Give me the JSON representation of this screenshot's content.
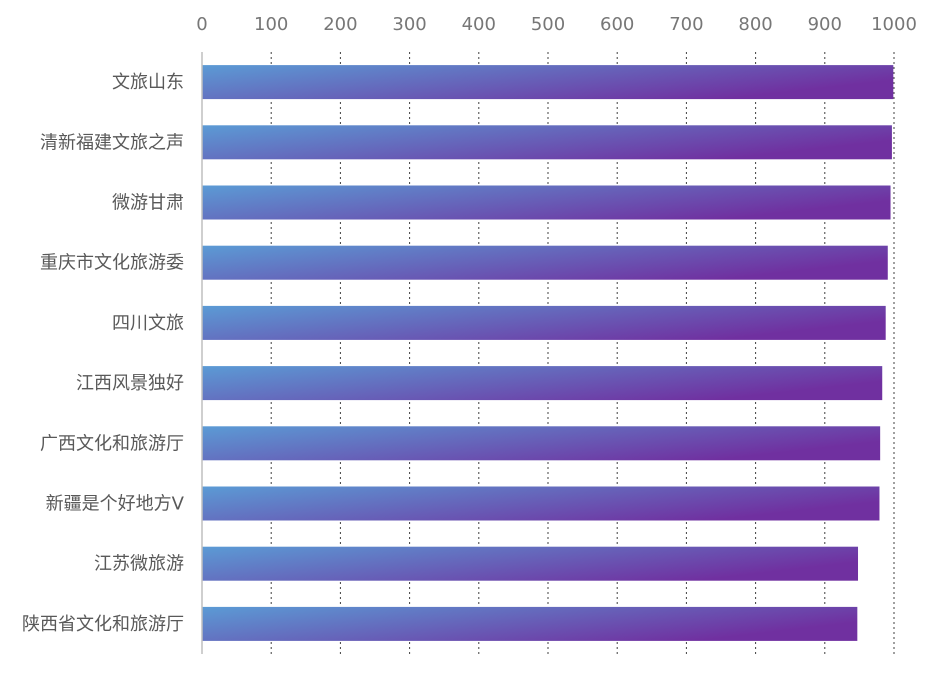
{
  "chart_data": {
    "type": "bar",
    "orientation": "horizontal",
    "title": "",
    "xlabel": "",
    "ylabel": "",
    "categories": [
      "文旅山东",
      "清新福建文旅之声",
      "微游甘肃",
      "重庆市文化旅游委",
      "四川文旅",
      "江西风景独好",
      "广西文化和旅游厅",
      "新疆是个好地方V",
      "江苏微旅游",
      "陕西省文化和旅游厅"
    ],
    "values": [
      999,
      997,
      995,
      991,
      988,
      983,
      980,
      979,
      948,
      947
    ],
    "xlim": [
      0,
      1000
    ],
    "xticks": [
      0,
      100,
      200,
      300,
      400,
      500,
      600,
      700,
      800,
      900,
      1000
    ],
    "axis_position": "top",
    "grid": "vertical dotted",
    "legend": "none",
    "colors": {
      "bar_gradient_start": "#5b9bd5",
      "bar_gradient_end": "#7030a0",
      "grid": "#404040",
      "axis": "#bfbfbf",
      "tick_text": "#777777",
      "category_text": "#595959"
    }
  }
}
